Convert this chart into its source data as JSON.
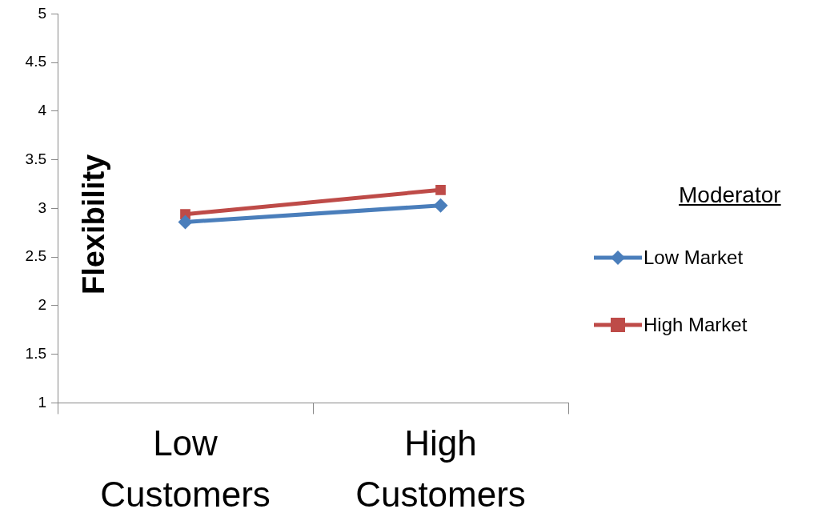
{
  "chart_data": {
    "type": "line",
    "ylabel": "Flexibility",
    "legend_title": "Moderator",
    "legend": "right",
    "grid": false,
    "categories": [
      "Low Customers",
      "High Customers"
    ],
    "ylim": [
      1,
      5
    ],
    "yticks": [
      1,
      1.5,
      2,
      2.5,
      3,
      3.5,
      4,
      4.5,
      5
    ],
    "series": [
      {
        "name": "Low Market",
        "color": "#4a7ebb",
        "marker": "diamond",
        "values": [
          2.86,
          3.03
        ]
      },
      {
        "name": "High Market",
        "color": "#be4b48",
        "marker": "square",
        "values": [
          2.94,
          3.19
        ]
      }
    ]
  }
}
